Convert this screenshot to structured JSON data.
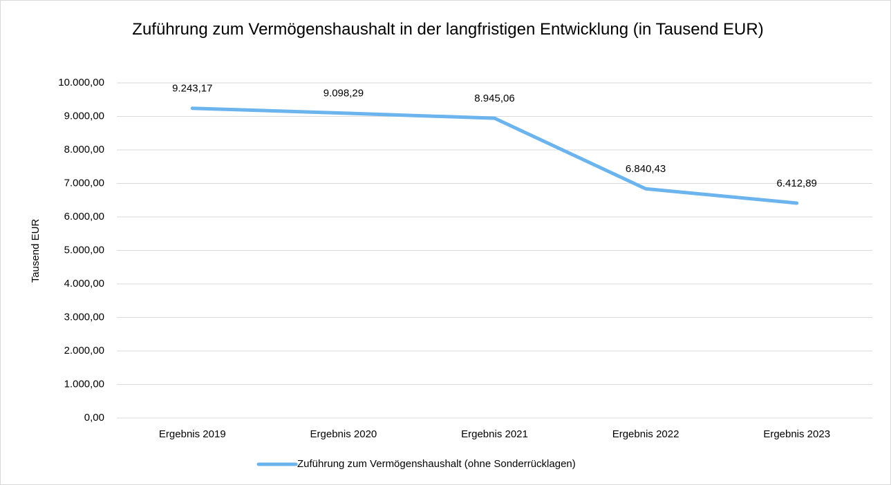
{
  "chart_data": {
    "type": "line",
    "title": "Zuführung zum Vermögenshaushalt in der langfristigen Entwicklung (in Tausend EUR)",
    "y_label": "Tausend EUR",
    "categories": [
      "Ergebnis 2019",
      "Ergebnis 2020",
      "Ergebnis 2021",
      "Ergebnis 2022",
      "Ergebnis 2023"
    ],
    "series": [
      {
        "name": "Zuführung zum Vermögenshaushalt (ohne Sonderrücklagen)",
        "color": "#6cb4ee",
        "values": [
          9243.17,
          9098.29,
          8945.06,
          6840.43,
          6412.89
        ],
        "value_labels": [
          "9.243,17",
          "9.098,29",
          "8.945,06",
          "6.840,43",
          "6.412,89"
        ]
      }
    ],
    "ylim": [
      0,
      10000
    ],
    "yticks": [
      {
        "value": 0,
        "label": "0,00"
      },
      {
        "value": 1000,
        "label": "1.000,00"
      },
      {
        "value": 2000,
        "label": "2.000,00"
      },
      {
        "value": 3000,
        "label": "3.000,00"
      },
      {
        "value": 4000,
        "label": "4.000,00"
      },
      {
        "value": 5000,
        "label": "5.000,00"
      },
      {
        "value": 6000,
        "label": "6.000,00"
      },
      {
        "value": 7000,
        "label": "7.000,00"
      },
      {
        "value": 8000,
        "label": "8.000,00"
      },
      {
        "value": 9000,
        "label": "9.000,00"
      },
      {
        "value": 10000,
        "label": "10.000,00"
      }
    ],
    "grid": true,
    "legend": "bottom"
  }
}
